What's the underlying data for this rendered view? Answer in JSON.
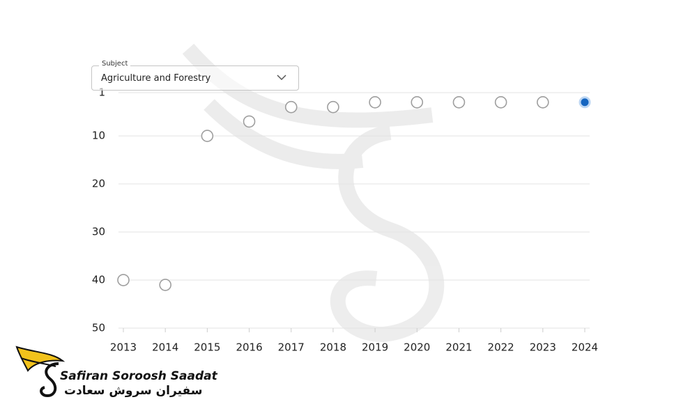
{
  "subject_selector": {
    "label": "Subject",
    "value": "Agriculture and Forestry"
  },
  "logo": {
    "name": "Safiran Soroosh Saadat",
    "name_fa": "سفیران سروش سعادت"
  },
  "chart_data": {
    "type": "line",
    "x": [
      "2013",
      "2014",
      "2015",
      "2016",
      "2017",
      "2018",
      "2019",
      "2020",
      "2021",
      "2022",
      "2023",
      "2024"
    ],
    "series": [
      {
        "color": "#5cc94f",
        "values": [
          40,
          41,
          10,
          7,
          4,
          4,
          3,
          3,
          3,
          3,
          3,
          3
        ]
      }
    ],
    "ylim": [
      1,
      50
    ],
    "yticks": [
      1,
      10,
      20,
      30,
      40,
      50
    ],
    "y_inverted": true,
    "grid": true,
    "marker_color": "#ffffff",
    "marker_edge_color": "#9e9e9e",
    "selected_point_color": "#1565c0"
  }
}
